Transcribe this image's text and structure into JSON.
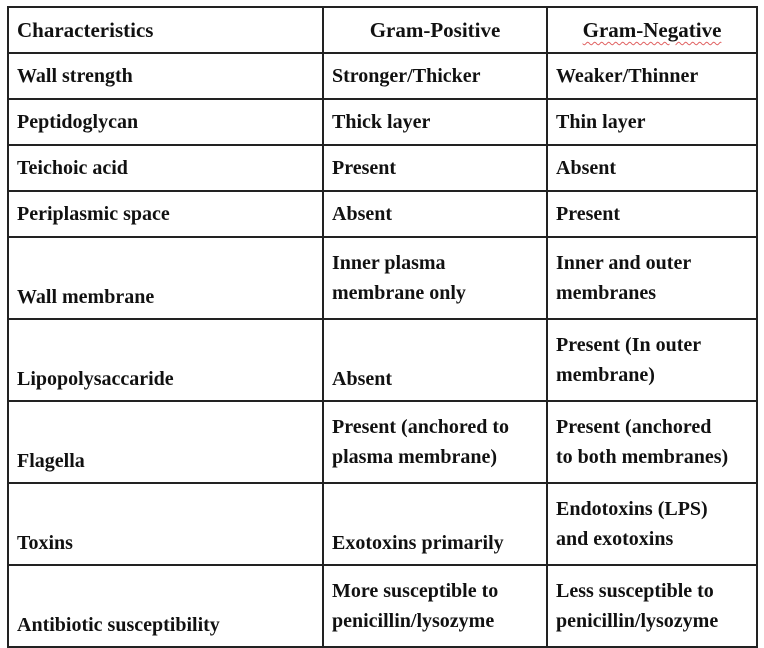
{
  "table": {
    "header": [
      "Characteristics",
      "Gram-Positive",
      "Gram-Negative"
    ],
    "rows": [
      [
        "Wall strength",
        "Stronger/Thicker",
        "Weaker/Thinner"
      ],
      [
        "Peptidoglycan",
        "Thick layer",
        "Thin layer"
      ],
      [
        "Teichoic acid",
        "Present",
        "Absent"
      ],
      [
        "Periplasmic space",
        "Absent",
        "Present"
      ],
      [
        "Wall membrane",
        "Inner plasma\nmembrane only",
        "Inner and outer\nmembranes"
      ],
      [
        "Lipopolysaccaride",
        "Absent",
        "Present (In outer\nmembrane)"
      ],
      [
        "Flagella",
        "Present (anchored to\nplasma membrane)",
        "Present (anchored\nto both membranes)"
      ],
      [
        "Toxins",
        "Exotoxins primarily",
        "Endotoxins (LPS)\nand exotoxins"
      ],
      [
        "Antibiotic susceptibility",
        "More susceptible to\npenicillin/lysozyme",
        "Less susceptible to\npenicillin/lysozyme"
      ]
    ]
  }
}
